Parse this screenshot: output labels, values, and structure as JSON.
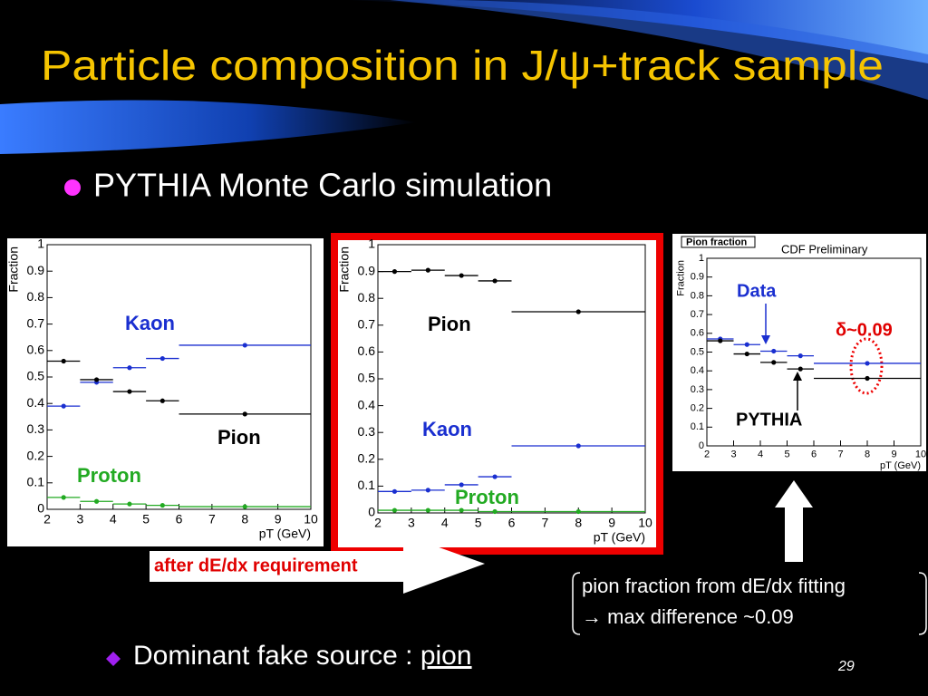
{
  "title": "Particle composition in J/ψ+track sample",
  "bullet": "PYTHIA Monte Carlo simulation",
  "callout": "after dE/dx requirement",
  "note": [
    "pion fraction from dE/dx fitting",
    "→ max difference ~0.09"
  ],
  "bottom_bullet": {
    "text": "Dominant fake source : ",
    "emphasis": "pion"
  },
  "page_number": "29",
  "chart_data": [
    {
      "type": "errorbar",
      "ylabel": "Fraction",
      "xlabel": "pT (GeV)",
      "xlim": [
        2,
        10
      ],
      "ylim": [
        0,
        1
      ],
      "xticks": [
        2,
        3,
        4,
        5,
        6,
        7,
        8,
        9,
        10
      ],
      "yticks": [
        0,
        0.1,
        0.2,
        0.3,
        0.4,
        0.5,
        0.6,
        0.7,
        0.8,
        0.9,
        1
      ],
      "x": [
        2.5,
        3.5,
        4.5,
        5.5,
        8
      ],
      "xerr": [
        0.5,
        0.5,
        0.5,
        0.5,
        2
      ],
      "series": [
        {
          "name": "Kaon",
          "color": "#1a2fd0",
          "values": [
            0.39,
            0.48,
            0.535,
            0.57,
            0.62
          ]
        },
        {
          "name": "Pion",
          "color": "#000000",
          "values": [
            0.56,
            0.49,
            0.445,
            0.41,
            0.36
          ]
        },
        {
          "name": "Proton",
          "color": "#22aa22",
          "values": [
            0.045,
            0.03,
            0.02,
            0.015,
            0.01
          ]
        }
      ]
    },
    {
      "type": "errorbar",
      "ylabel": "Fraction",
      "xlabel": "pT (GeV)",
      "xlim": [
        2,
        10
      ],
      "ylim": [
        0,
        1
      ],
      "xticks": [
        2,
        3,
        4,
        5,
        6,
        7,
        8,
        9,
        10
      ],
      "yticks": [
        0,
        0.1,
        0.2,
        0.3,
        0.4,
        0.5,
        0.6,
        0.7,
        0.8,
        0.9,
        1
      ],
      "x": [
        2.5,
        3.5,
        4.5,
        5.5,
        8
      ],
      "xerr": [
        0.5,
        0.5,
        0.5,
        0.5,
        2
      ],
      "series": [
        {
          "name": "Pion",
          "color": "#000000",
          "values": [
            0.9,
            0.905,
            0.885,
            0.865,
            0.75
          ]
        },
        {
          "name": "Kaon",
          "color": "#1a2fd0",
          "values": [
            0.08,
            0.085,
            0.105,
            0.135,
            0.25
          ]
        },
        {
          "name": "Proton",
          "color": "#22aa22",
          "values": [
            0.01,
            0.01,
            0.01,
            0.005,
            0.005
          ]
        }
      ]
    },
    {
      "type": "errorbar",
      "title": "Pion fraction",
      "annotations": [
        "CDF Preliminary",
        "δ~0.09"
      ],
      "ylabel": "Fraction",
      "xlabel": "pT (GeV)",
      "xlim": [
        2,
        10
      ],
      "ylim": [
        0,
        1
      ],
      "xticks": [
        2,
        3,
        4,
        5,
        6,
        7,
        8,
        9,
        10
      ],
      "yticks": [
        0,
        0.1,
        0.2,
        0.3,
        0.4,
        0.5,
        0.6,
        0.7,
        0.8,
        0.9,
        1
      ],
      "x": [
        2.5,
        3.5,
        4.5,
        5.5,
        8
      ],
      "xerr": [
        0.5,
        0.5,
        0.5,
        0.5,
        2
      ],
      "series": [
        {
          "name": "Data",
          "color": "#1a2fd0",
          "values": [
            0.57,
            0.54,
            0.505,
            0.48,
            0.44
          ]
        },
        {
          "name": "PYTHIA",
          "color": "#000000",
          "values": [
            0.56,
            0.49,
            0.445,
            0.41,
            0.36
          ]
        }
      ]
    }
  ]
}
